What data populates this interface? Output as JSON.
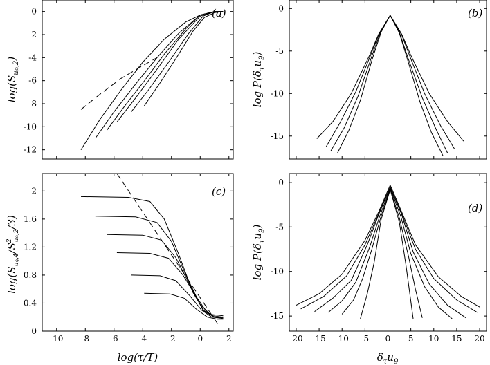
{
  "chart_data": [
    {
      "id": "a",
      "type": "line",
      "panel_label": "(a)",
      "ylabel": "log(S_{u9,2})",
      "xlabel": "",
      "xlim": [
        -11,
        2.3
      ],
      "ylim": [
        -12.8,
        1
      ],
      "xticks": [
        -10,
        -8,
        -6,
        -4,
        -2,
        0,
        2
      ],
      "yticks": [
        0,
        -2,
        -4,
        -6,
        -8,
        -10,
        -12
      ],
      "xtick_labels_shown": false,
      "series": [
        {
          "name": "curve 1",
          "x": [
            -8.3,
            -7,
            -5.5,
            -4,
            -2.5,
            -1,
            0,
            1,
            1.6
          ],
          "y": [
            -12,
            -9.4,
            -6.8,
            -4.4,
            -2.4,
            -0.9,
            -0.3,
            0,
            0
          ]
        },
        {
          "name": "curve 2",
          "x": [
            -7.3,
            -6,
            -4.5,
            -3,
            -1.5,
            0,
            1,
            1.6
          ],
          "y": [
            -11,
            -8.7,
            -6.3,
            -4,
            -1.9,
            -0.3,
            0,
            0
          ]
        },
        {
          "name": "curve 3",
          "x": [
            -6.5,
            -5.2,
            -4,
            -2.5,
            -1,
            0,
            1,
            1.6
          ],
          "y": [
            -10.3,
            -8.1,
            -6.2,
            -3.7,
            -1.5,
            -0.3,
            0,
            0
          ]
        },
        {
          "name": "curve 4",
          "x": [
            -5.8,
            -4.5,
            -3,
            -1.5,
            0,
            1,
            1.6
          ],
          "y": [
            -9.6,
            -7.5,
            -5,
            -2.4,
            -0.4,
            0,
            0
          ]
        },
        {
          "name": "curve 5",
          "x": [
            -4.8,
            -3.6,
            -2.2,
            -0.8,
            0.2,
            1,
            1.6
          ],
          "y": [
            -8.7,
            -6.8,
            -4.4,
            -1.9,
            -0.4,
            0,
            0
          ]
        },
        {
          "name": "curve 6",
          "x": [
            -3.9,
            -2.8,
            -1.6,
            -0.5,
            0.3,
            1,
            1.6
          ],
          "y": [
            -8.2,
            -6.2,
            -3.9,
            -1.7,
            -0.5,
            -0.1,
            0
          ]
        }
      ],
      "dashed": {
        "x": [
          -8.3,
          -7,
          -5.5,
          -4,
          -3
        ],
        "y": [
          -8.5,
          -7.2,
          -5.8,
          -4.7,
          -4
        ]
      }
    },
    {
      "id": "b",
      "type": "line",
      "panel_label": "(b)",
      "ylabel": "log P(δ_τ u9)",
      "xlabel": "",
      "xlim": [
        -21.5,
        21.5
      ],
      "ylim": [
        -17.7,
        1
      ],
      "xticks": [
        -20,
        -15,
        -10,
        -5,
        0,
        5,
        10,
        15,
        20
      ],
      "yticks": [
        0,
        -5,
        -10,
        -15
      ],
      "xtick_labels_shown": false,
      "series": [
        {
          "name": "pdf 1",
          "x": [
            -15.5,
            -12,
            -8,
            -4,
            -2,
            0.5,
            3,
            5,
            9,
            13,
            16.5
          ],
          "y": [
            -15.3,
            -13.3,
            -10,
            -5.5,
            -3,
            -0.8,
            -3,
            -5.5,
            -10,
            -13.3,
            -15.6
          ]
        },
        {
          "name": "pdf 2",
          "x": [
            -13.5,
            -10.5,
            -7,
            -4,
            -2,
            0.5,
            3,
            5,
            8,
            11.5,
            14.5
          ],
          "y": [
            -16.3,
            -13.5,
            -9.8,
            -5.8,
            -3.1,
            -0.8,
            -3.1,
            -5.9,
            -10,
            -13.8,
            -16.5
          ]
        },
        {
          "name": "pdf 3",
          "x": [
            -12.5,
            -9.5,
            -6.5,
            -3.5,
            -1.5,
            0.5,
            2.5,
            4.5,
            7.5,
            10.5,
            13
          ],
          "y": [
            -16.8,
            -14,
            -10.3,
            -5.6,
            -2.6,
            -0.8,
            -2.8,
            -6,
            -10.5,
            -14.2,
            -17
          ]
        },
        {
          "name": "pdf 4",
          "x": [
            -11,
            -8.5,
            -6,
            -3.5,
            -1.5,
            0.5,
            2.5,
            4.5,
            7,
            9.5,
            12
          ],
          "y": [
            -17,
            -14.3,
            -10.8,
            -6.1,
            -2.8,
            -0.8,
            -2.9,
            -6.4,
            -11,
            -14.6,
            -17.3
          ]
        }
      ]
    },
    {
      "id": "c",
      "type": "line",
      "panel_label": "(c)",
      "ylabel": "log(S_{u9,4}/S^2_{u9,2}/3)",
      "xlabel": "log(τ/T)",
      "xlim": [
        -11,
        2.3
      ],
      "ylim": [
        0,
        2.25
      ],
      "xticks": [
        -10,
        -8,
        -6,
        -4,
        -2,
        0,
        2
      ],
      "xtick_labels": [
        "-10",
        "-8",
        "-6",
        "-4",
        "-2",
        "0",
        "2"
      ],
      "yticks": [
        0,
        0.4,
        0.8,
        1.2,
        1.6,
        2
      ],
      "ytick_labels": [
        "0",
        "0.4",
        "0.8",
        "1.2",
        "1.6",
        "2"
      ],
      "series": [
        {
          "name": "flatness 1",
          "x": [
            -8.3,
            -5,
            -3.5,
            -2.5,
            -1.5,
            -0.5,
            0.3,
            1,
            1.6
          ],
          "y": [
            1.92,
            1.91,
            1.85,
            1.6,
            1.1,
            0.55,
            0.28,
            0.2,
            0.2
          ]
        },
        {
          "name": "flatness 2",
          "x": [
            -7.3,
            -4.5,
            -3,
            -2,
            -1,
            0,
            0.7,
            1.6
          ],
          "y": [
            1.64,
            1.63,
            1.55,
            1.28,
            0.8,
            0.38,
            0.24,
            0.22
          ]
        },
        {
          "name": "flatness 3",
          "x": [
            -6.5,
            -4,
            -2.7,
            -1.7,
            -0.7,
            0.2,
            0.9,
            1.6
          ],
          "y": [
            1.38,
            1.37,
            1.3,
            1.05,
            0.65,
            0.3,
            0.22,
            0.2
          ]
        },
        {
          "name": "flatness 4",
          "x": [
            -5.8,
            -3.5,
            -2.2,
            -1.2,
            -0.3,
            0.5,
            1,
            1.6
          ],
          "y": [
            1.12,
            1.11,
            1.04,
            0.8,
            0.5,
            0.26,
            0.2,
            0.19
          ]
        },
        {
          "name": "flatness 5",
          "x": [
            -4.8,
            -2.8,
            -1.7,
            -0.7,
            0.1,
            0.8,
            1.6
          ],
          "y": [
            0.8,
            0.79,
            0.72,
            0.5,
            0.3,
            0.2,
            0.18
          ]
        },
        {
          "name": "flatness 6",
          "x": [
            -3.9,
            -2.1,
            -1.1,
            -0.3,
            0.5,
            1.2,
            1.6
          ],
          "y": [
            0.54,
            0.53,
            0.47,
            0.32,
            0.2,
            0.17,
            0.17
          ]
        }
      ],
      "dashed": {
        "x": [
          -5.8,
          1.3
        ],
        "y": [
          2.25,
          0.08
        ]
      }
    },
    {
      "id": "d",
      "type": "line",
      "panel_label": "(d)",
      "ylabel": "log P(δ_τ u9)",
      "xlabel": "δ_τ u9",
      "xlim": [
        -21.5,
        21.5
      ],
      "ylim": [
        -16.7,
        1
      ],
      "xticks": [
        -20,
        -15,
        -10,
        -5,
        0,
        5,
        10,
        15,
        20
      ],
      "xtick_labels": [
        "-20",
        "-15",
        "-10",
        "-5",
        "0",
        "5",
        "10",
        "15",
        "20"
      ],
      "yticks": [
        0,
        -5,
        -10,
        -15
      ],
      "ytick_labels": [
        "0",
        "-5",
        "-10",
        "-15"
      ],
      "series": [
        {
          "name": "pdf 1",
          "x": [
            -20,
            -15,
            -10,
            -5,
            -2,
            0.5,
            3,
            6,
            11,
            16,
            20
          ],
          "y": [
            -13.8,
            -12.5,
            -10.3,
            -6.5,
            -3.3,
            -0.3,
            -3.3,
            -7,
            -10.6,
            -12.8,
            -14
          ]
        },
        {
          "name": "pdf 2",
          "x": [
            -19,
            -14,
            -9,
            -5,
            -2,
            0.5,
            3,
            6,
            10,
            15,
            19.5
          ],
          "y": [
            -14.2,
            -12.8,
            -10.5,
            -7,
            -3.5,
            -0.5,
            -3.5,
            -7.5,
            -10.8,
            -13.2,
            -14.6
          ]
        },
        {
          "name": "pdf 3",
          "x": [
            -16,
            -12,
            -8,
            -4.5,
            -2,
            0.5,
            3,
            5.5,
            9,
            13,
            17
          ],
          "y": [
            -14.5,
            -13,
            -11,
            -7,
            -3.6,
            -0.6,
            -3.6,
            -7.8,
            -11.4,
            -13.8,
            -15.2
          ]
        },
        {
          "name": "pdf 4",
          "x": [
            -13,
            -10,
            -7,
            -4,
            -1.8,
            0.5,
            2.8,
            5,
            8,
            11,
            14
          ],
          "y": [
            -14.6,
            -13.3,
            -11.2,
            -7.3,
            -3.8,
            -0.7,
            -3.8,
            -8,
            -11.7,
            -14,
            -15.3
          ]
        },
        {
          "name": "pdf 5",
          "x": [
            -10,
            -7.5,
            -5.5,
            -3.5,
            -1.5,
            0.5,
            2.5,
            4.5,
            6,
            7.5
          ],
          "y": [
            -14.8,
            -13.2,
            -10.8,
            -7.5,
            -3.8,
            -0.8,
            -4,
            -8.3,
            -12,
            -15.2
          ]
        },
        {
          "name": "pdf 6",
          "x": [
            -6,
            -4.5,
            -3,
            -1.5,
            0.5,
            2.5,
            4,
            5.5
          ],
          "y": [
            -15.3,
            -12.5,
            -9,
            -4.2,
            -0.8,
            -4.5,
            -9.5,
            -15.3
          ]
        }
      ]
    }
  ]
}
